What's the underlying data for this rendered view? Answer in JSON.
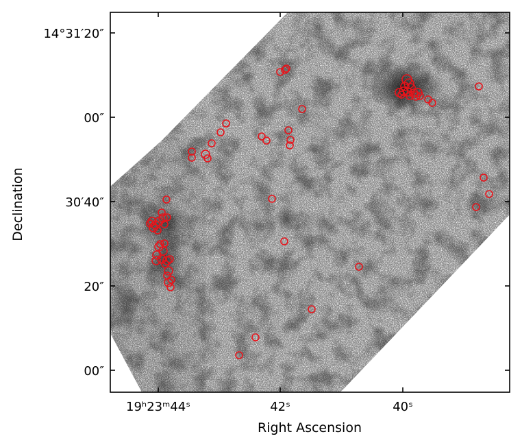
{
  "axes": {
    "xlabel": "Right Ascension",
    "ylabel": "Declination",
    "x_ticks": [
      {
        "label": "19ʰ23ᵐ44ˢ"
      },
      {
        "label": "42ˢ"
      },
      {
        "label": "40ˢ"
      }
    ],
    "y_ticks": [
      {
        "label": "14°31′20″"
      },
      {
        "label": "00″"
      },
      {
        "label": "30′40″"
      },
      {
        "label": "20″"
      },
      {
        "label": "00″"
      }
    ]
  },
  "overlay": {
    "marker": "circle",
    "marker_color": "#e8141b",
    "image_colormap": "grayscale"
  }
}
